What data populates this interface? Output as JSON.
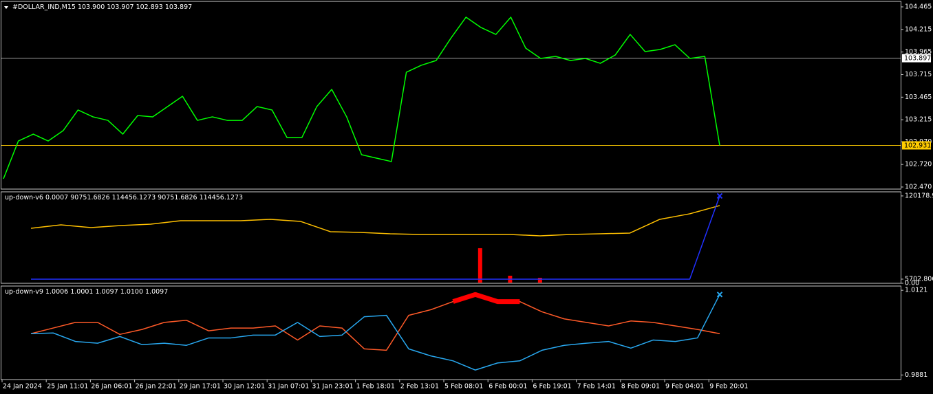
{
  "chart_data": [
    {
      "type": "line",
      "title": "#DOLLAR_IND,M15  103.900 103.907 102.893 103.897",
      "ylim": [
        102.447,
        104.526
      ],
      "yticks": [
        104.465,
        104.215,
        103.965,
        103.715,
        103.465,
        103.215,
        {
          "value": 102.97,
          "label": "102.970"
        },
        {
          "value": 102.72,
          "label": "102.720"
        },
        {
          "value": 102.47,
          "label": "102.470"
        }
      ],
      "series": [
        {
          "color": "#00ff00",
          "style": "line",
          "values": [
            102.561,
            102.98,
            103.056,
            102.98,
            103.094,
            103.323,
            103.247,
            103.208,
            103.056,
            103.262,
            103.247,
            103.361,
            103.475,
            103.208,
            103.247,
            103.208,
            103.208,
            103.361,
            103.323,
            103.018,
            103.018,
            103.361,
            103.551,
            103.247,
            102.828,
            102.79,
            102.752,
            103.741,
            103.818,
            103.871,
            104.122,
            104.351,
            104.237,
            104.16,
            104.351,
            104.008,
            103.894,
            103.917,
            103.871,
            103.894,
            103.84,
            103.932,
            104.16,
            103.97,
            103.993,
            104.046,
            103.894,
            103.917,
            102.931
          ]
        }
      ],
      "hlines": [
        {
          "value": 103.897,
          "color": "#a0a0a0",
          "label_bg": "#ffffff"
        },
        {
          "value": 102.931,
          "color": "#e6b800",
          "label_bg": "#ffcc00"
        }
      ]
    },
    {
      "type": "line",
      "title": "up-down-v6 0.0007 90751.6826 114456.1273 90751.6826 114456.1273",
      "ylim": [
        0,
        125800
      ],
      "yticks": [
        120178.93,
        5702.806,
        {
          "value": 0,
          "label": "0.00"
        }
      ],
      "series": [
        {
          "color": "#ffc000",
          "style": "line",
          "values": [
            75712,
            80443,
            76659,
            79497,
            81389,
            86120,
            86120,
            86120,
            88012,
            85174,
            70982,
            70036,
            68144,
            67198,
            67198,
            67198,
            67198,
            65306,
            67198,
            68144,
            69090,
            88012,
            95581,
            106933
          ]
        },
        {
          "color": "#ff0000",
          "style": "histogram",
          "values": [
            null,
            null,
            null,
            null,
            null,
            null,
            null,
            null,
            null,
            null,
            null,
            null,
            null,
            null,
            null,
            48276,
            10433,
            7595,
            null,
            null,
            null,
            null,
            null,
            null
          ]
        },
        {
          "color": "#2030ff",
          "style": "line",
          "end_marker": "x",
          "values": [
            5702.806,
            5702.806,
            5702.806,
            5702.806,
            5702.806,
            5702.806,
            5702.806,
            5702.806,
            5702.806,
            5702.806,
            5702.806,
            5702.806,
            5702.806,
            5702.806,
            5702.806,
            5702.806,
            5702.806,
            5702.806,
            5702.806,
            5702.806,
            5702.806,
            5702.806,
            5702.806,
            120178.93
          ]
        }
      ]
    },
    {
      "type": "line",
      "title": "up-down-v9 1.0006 1.0001 1.0097 1.0100 1.0097",
      "ylim": [
        0.9868,
        1.0133
      ],
      "yticks": [
        1.0121,
        0.9881
      ],
      "series": [
        {
          "color": "#ff5a28",
          "style": "line",
          "values": [
            0.9998,
            1.0014,
            1.003,
            1.003,
            0.9996,
            1.001,
            1.003,
            1.0036,
            1.0006,
            1.0014,
            1.0014,
            1.002,
            0.998,
            1.002,
            1.0014,
            0.9955,
            0.9951,
            1.005,
            1.0066,
            1.0089,
            1.0109,
            1.0089,
            1.0089,
            1.006,
            1.004,
            1.003,
            1.002,
            1.0034,
            1.003,
            1.002,
            1.001,
            0.9998
          ]
        },
        {
          "color": "#ff0000",
          "style": "thick",
          "values": [
            null,
            null,
            null,
            null,
            null,
            null,
            null,
            null,
            null,
            null,
            null,
            null,
            null,
            null,
            null,
            null,
            null,
            null,
            null,
            1.0089,
            1.0109,
            1.0089,
            1.0089,
            null,
            null,
            null,
            null,
            null,
            null,
            null,
            null,
            null
          ]
        },
        {
          "color": "#28a8f0",
          "style": "line",
          "end_marker": "x",
          "values": [
            0.9998,
            1.0,
            0.9976,
            0.9971,
            0.999,
            0.9967,
            0.9971,
            0.9965,
            0.9986,
            0.9986,
            0.9994,
            0.9994,
            1.003,
            0.999,
            0.9994,
            1.0046,
            1.005,
            0.9955,
            0.9935,
            0.9921,
            0.9895,
            0.9915,
            0.9921,
            0.9951,
            0.9965,
            0.9971,
            0.9976,
            0.9957,
            0.998,
            0.9976,
            0.9986,
            1.0109
          ]
        }
      ],
      "x_labels": [
        "24 Jan 2024",
        "25 Jan 11:01",
        "26 Jan 06:01",
        "26 Jan 22:01",
        "29 Jan 17:01",
        "30 Jan 12:01",
        "31 Jan 07:01",
        "31 Jan 23:01",
        "1 Feb 18:01",
        "2 Feb 13:01",
        "5 Feb 08:01",
        "6 Feb 00:01",
        "6 Feb 19:01",
        "7 Feb 14:01",
        "8 Feb 09:01",
        "9 Feb 04:01",
        "9 Feb 20:01"
      ]
    }
  ]
}
